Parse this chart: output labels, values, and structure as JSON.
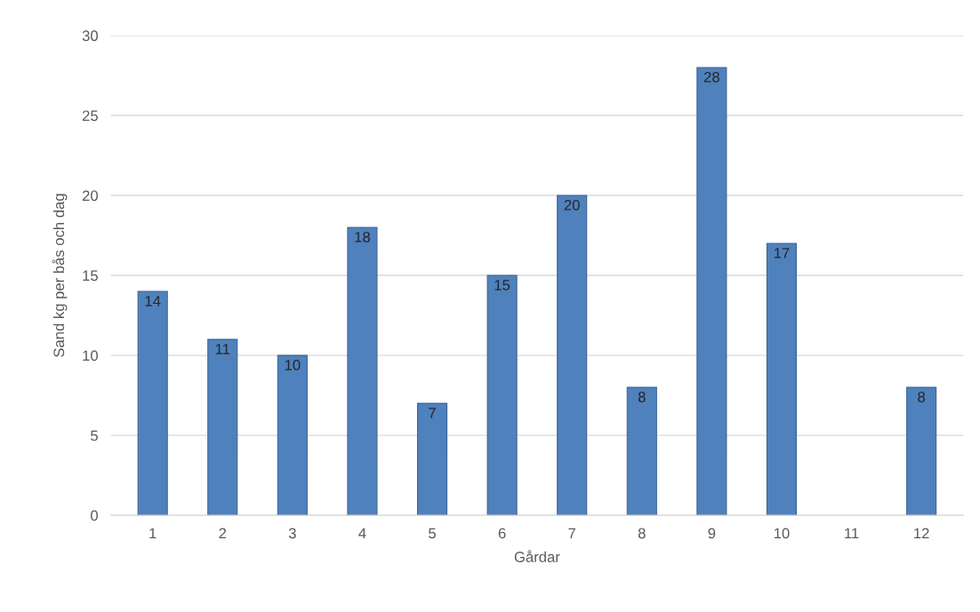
{
  "chart_data": {
    "type": "bar",
    "xlabel": "Gårdar",
    "ylabel": "Sand kg per bås och dag",
    "categories": [
      "1",
      "2",
      "3",
      "4",
      "5",
      "6",
      "7",
      "8",
      "9",
      "10",
      "11",
      "12"
    ],
    "values": [
      14,
      11,
      10,
      18,
      7,
      15,
      20,
      8,
      28,
      17,
      null,
      8
    ],
    "color": "#4f81bd",
    "ylim": [
      0,
      30
    ],
    "yticks": [
      0,
      5,
      10,
      15,
      20,
      25,
      30
    ],
    "grid": "y",
    "data_labels": true
  }
}
